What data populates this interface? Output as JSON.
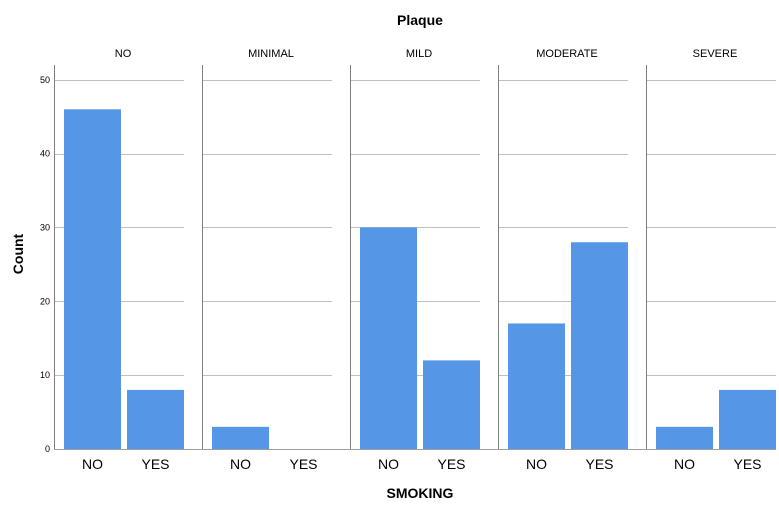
{
  "chart_data": {
    "type": "bar",
    "title": "Plaque",
    "xlabel": "SMOKING",
    "ylabel": "Count",
    "ylim": [
      0,
      52
    ],
    "yticks": [
      0,
      10,
      20,
      30,
      40,
      50
    ],
    "categories": [
      "NO",
      "YES"
    ],
    "facets": [
      {
        "name": "NO",
        "values": [
          46,
          8
        ]
      },
      {
        "name": "MINIMAL",
        "values": [
          3,
          0
        ]
      },
      {
        "name": "MILD",
        "values": [
          30,
          12
        ]
      },
      {
        "name": "MODERATE",
        "values": [
          17,
          28
        ]
      },
      {
        "name": "SEVERE",
        "values": [
          3,
          8
        ]
      }
    ],
    "bar_color": "#5596E6",
    "grid": true,
    "grid_color": "#bfbfbf",
    "axis_color": "#808080"
  }
}
